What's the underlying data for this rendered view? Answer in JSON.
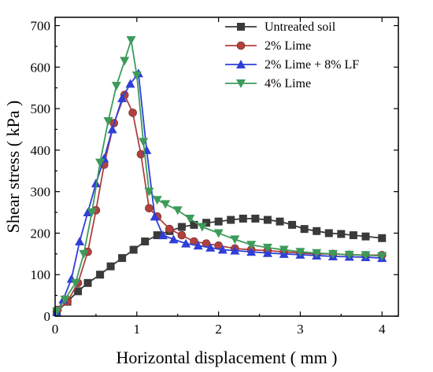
{
  "chart_data": {
    "type": "line",
    "xlabel": "Horizontal displacement ( mm )",
    "ylabel": "Shear stress ( kPa )",
    "xlim": [
      0,
      4.2
    ],
    "ylim": [
      0,
      720
    ],
    "x_ticks": [
      0,
      1,
      2,
      3,
      4
    ],
    "y_ticks": [
      0,
      100,
      200,
      300,
      400,
      500,
      600,
      700
    ],
    "legend_position": "top-right",
    "grid": false,
    "series": [
      {
        "name": "Untreated soil",
        "color": "#3a3a3a",
        "marker": "square",
        "x": [
          0.02,
          0.15,
          0.28,
          0.4,
          0.55,
          0.68,
          0.82,
          0.96,
          1.1,
          1.25,
          1.4,
          1.55,
          1.7,
          1.85,
          2.0,
          2.15,
          2.3,
          2.45,
          2.6,
          2.75,
          2.9,
          3.05,
          3.2,
          3.35,
          3.5,
          3.65,
          3.8,
          4.0
        ],
        "y": [
          10,
          35,
          60,
          80,
          100,
          120,
          140,
          160,
          180,
          195,
          205,
          215,
          220,
          225,
          228,
          232,
          235,
          235,
          232,
          228,
          220,
          210,
          205,
          200,
          198,
          195,
          192,
          188
        ]
      },
      {
        "name": "2% Lime",
        "color": "#b0413e",
        "marker": "circle",
        "x": [
          0.03,
          0.15,
          0.28,
          0.4,
          0.5,
          0.6,
          0.72,
          0.85,
          0.95,
          1.05,
          1.15,
          1.25,
          1.4,
          1.55,
          1.7,
          1.85,
          2.0,
          2.2,
          2.4,
          2.6,
          2.8,
          3.0,
          3.2,
          3.4,
          3.6,
          3.8,
          4.0
        ],
        "y": [
          15,
          35,
          80,
          155,
          255,
          365,
          465,
          533,
          490,
          390,
          260,
          240,
          210,
          195,
          180,
          175,
          170,
          163,
          160,
          158,
          155,
          152,
          150,
          150,
          148,
          147,
          147
        ]
      },
      {
        "name": "2% Lime + 8% LF",
        "color": "#2f3fd6",
        "marker": "triangle-up",
        "x": [
          0.02,
          0.1,
          0.2,
          0.3,
          0.4,
          0.5,
          0.6,
          0.7,
          0.82,
          0.92,
          1.02,
          1.12,
          1.22,
          1.32,
          1.45,
          1.6,
          1.75,
          1.9,
          2.05,
          2.2,
          2.4,
          2.6,
          2.8,
          3.0,
          3.2,
          3.4,
          3.6,
          3.8,
          4.0
        ],
        "y": [
          10,
          40,
          90,
          180,
          250,
          320,
          380,
          450,
          525,
          560,
          585,
          400,
          240,
          195,
          185,
          175,
          170,
          165,
          160,
          158,
          155,
          152,
          150,
          148,
          146,
          144,
          143,
          142,
          140
        ]
      },
      {
        "name": "4% Lime",
        "color": "#3d9b5a",
        "marker": "triangle-down",
        "x": [
          0.02,
          0.12,
          0.25,
          0.35,
          0.45,
          0.55,
          0.65,
          0.75,
          0.85,
          0.93,
          1.0,
          1.08,
          1.15,
          1.25,
          1.35,
          1.5,
          1.65,
          1.8,
          2.0,
          2.2,
          2.4,
          2.6,
          2.8,
          3.0,
          3.2,
          3.4,
          3.6,
          3.8,
          4.0
        ],
        "y": [
          12,
          40,
          80,
          150,
          250,
          370,
          470,
          555,
          615,
          665,
          580,
          420,
          300,
          280,
          270,
          255,
          235,
          215,
          200,
          185,
          172,
          165,
          160,
          155,
          152,
          150,
          148,
          147,
          145
        ]
      }
    ]
  }
}
